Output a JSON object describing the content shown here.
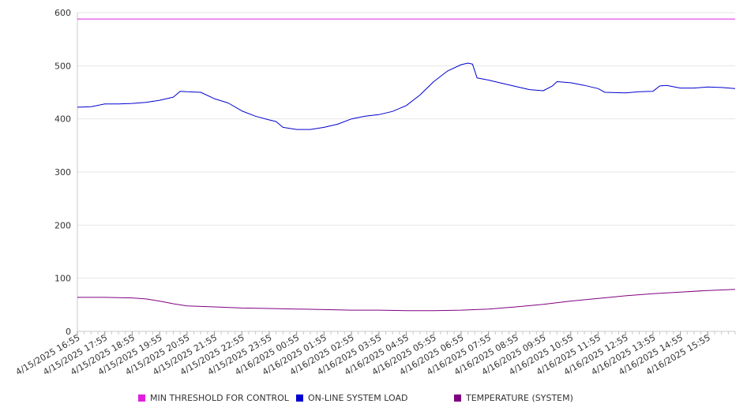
{
  "chart_data": {
    "type": "line",
    "title": "",
    "xlabel": "",
    "ylabel": "",
    "ylim": [
      0,
      600
    ],
    "yticks": [
      0,
      100,
      200,
      300,
      400,
      500,
      600
    ],
    "grid": "horizontal",
    "legend_position": "bottom",
    "x_start": "4/15/2025 16:55",
    "x_end": "4/16/2025 16:55",
    "xtick_labels": [
      "4/15/2025 16:55",
      "4/15/2025 17:55",
      "4/15/2025 18:55",
      "4/15/2025 19:55",
      "4/15/2025 20:55",
      "4/15/2025 21:55",
      "4/15/2025 22:55",
      "4/15/2025 23:55",
      "4/16/2025 00:55",
      "4/16/2025 01:55",
      "4/16/2025 02:55",
      "4/16/2025 03:55",
      "4/16/2025 04:55",
      "4/16/2025 05:55",
      "4/16/2025 06:55",
      "4/16/2025 07:55",
      "4/16/2025 08:55",
      "4/16/2025 09:55",
      "4/16/2025 10:55",
      "4/16/2025 11:55",
      "4/16/2025 12:55",
      "4/16/2025 13:55",
      "4/16/2025 14:55",
      "4/16/2025 15:55"
    ],
    "series": [
      {
        "name": "MIN THRESHOLD FOR CONTROL",
        "color": "#e020e0",
        "points": [
          [
            "4/15/2025 16:55",
            588
          ],
          [
            "4/16/2025 16:55",
            588
          ]
        ]
      },
      {
        "name": "ON-LINE SYSTEM LOAD",
        "color": "#0000d0",
        "points": [
          [
            "4/15/2025 16:55",
            422
          ],
          [
            "4/15/2025 17:25",
            423
          ],
          [
            "4/15/2025 17:55",
            428
          ],
          [
            "4/15/2025 18:25",
            428
          ],
          [
            "4/15/2025 18:55",
            429
          ],
          [
            "4/15/2025 19:25",
            431
          ],
          [
            "4/15/2025 19:55",
            435
          ],
          [
            "4/15/2025 20:25",
            441
          ],
          [
            "4/15/2025 20:40",
            452
          ],
          [
            "4/15/2025 20:55",
            451
          ],
          [
            "4/15/2025 21:25",
            450
          ],
          [
            "4/15/2025 21:55",
            438
          ],
          [
            "4/15/2025 22:25",
            430
          ],
          [
            "4/15/2025 22:55",
            415
          ],
          [
            "4/15/2025 23:25",
            405
          ],
          [
            "4/15/2025 23:55",
            398
          ],
          [
            "4/16/2025 00:10",
            395
          ],
          [
            "4/16/2025 00:25",
            384
          ],
          [
            "4/16/2025 00:55",
            380
          ],
          [
            "4/16/2025 01:25",
            380
          ],
          [
            "4/16/2025 01:55",
            384
          ],
          [
            "4/16/2025 02:25",
            390
          ],
          [
            "4/16/2025 02:55",
            400
          ],
          [
            "4/16/2025 03:25",
            405
          ],
          [
            "4/16/2025 03:55",
            408
          ],
          [
            "4/16/2025 04:25",
            414
          ],
          [
            "4/16/2025 04:55",
            425
          ],
          [
            "4/16/2025 05:25",
            445
          ],
          [
            "4/16/2025 05:55",
            470
          ],
          [
            "4/16/2025 06:25",
            490
          ],
          [
            "4/16/2025 06:55",
            502
          ],
          [
            "4/16/2025 07:10",
            505
          ],
          [
            "4/16/2025 07:20",
            503
          ],
          [
            "4/16/2025 07:30",
            477
          ],
          [
            "4/16/2025 07:55",
            473
          ],
          [
            "4/16/2025 08:25",
            467
          ],
          [
            "4/16/2025 08:55",
            461
          ],
          [
            "4/16/2025 09:25",
            455
          ],
          [
            "4/16/2025 09:55",
            453
          ],
          [
            "4/16/2025 10:15",
            462
          ],
          [
            "4/16/2025 10:25",
            470
          ],
          [
            "4/16/2025 10:55",
            468
          ],
          [
            "4/16/2025 11:25",
            463
          ],
          [
            "4/16/2025 11:55",
            457
          ],
          [
            "4/16/2025 12:10",
            450
          ],
          [
            "4/16/2025 12:55",
            449
          ],
          [
            "4/16/2025 13:25",
            451
          ],
          [
            "4/16/2025 13:55",
            452
          ],
          [
            "4/16/2025 14:10",
            462
          ],
          [
            "4/16/2025 14:25",
            463
          ],
          [
            "4/16/2025 14:55",
            458
          ],
          [
            "4/16/2025 15:25",
            458
          ],
          [
            "4/16/2025 15:55",
            460
          ],
          [
            "4/16/2025 16:25",
            459
          ],
          [
            "4/16/2025 16:55",
            457
          ]
        ]
      },
      {
        "name": "TEMPERATURE (SYSTEM)",
        "color": "#800080",
        "points": [
          [
            "4/15/2025 16:55",
            64
          ],
          [
            "4/15/2025 17:55",
            64
          ],
          [
            "4/15/2025 18:55",
            63
          ],
          [
            "4/15/2025 19:25",
            61
          ],
          [
            "4/15/2025 19:55",
            57
          ],
          [
            "4/15/2025 20:25",
            52
          ],
          [
            "4/15/2025 20:55",
            48
          ],
          [
            "4/15/2025 21:55",
            46
          ],
          [
            "4/15/2025 22:55",
            44
          ],
          [
            "4/15/2025 23:55",
            43
          ],
          [
            "4/16/2025 00:55",
            42
          ],
          [
            "4/16/2025 01:55",
            41
          ],
          [
            "4/16/2025 02:55",
            40
          ],
          [
            "4/16/2025 03:55",
            40
          ],
          [
            "4/16/2025 04:55",
            39
          ],
          [
            "4/16/2025 05:55",
            39
          ],
          [
            "4/16/2025 06:55",
            40
          ],
          [
            "4/16/2025 07:55",
            42
          ],
          [
            "4/16/2025 08:55",
            46
          ],
          [
            "4/16/2025 09:55",
            51
          ],
          [
            "4/16/2025 10:55",
            57
          ],
          [
            "4/16/2025 11:55",
            62
          ],
          [
            "4/16/2025 12:55",
            67
          ],
          [
            "4/16/2025 13:55",
            71
          ],
          [
            "4/16/2025 14:55",
            74
          ],
          [
            "4/16/2025 15:55",
            77
          ],
          [
            "4/16/2025 16:55",
            79
          ]
        ]
      }
    ]
  }
}
